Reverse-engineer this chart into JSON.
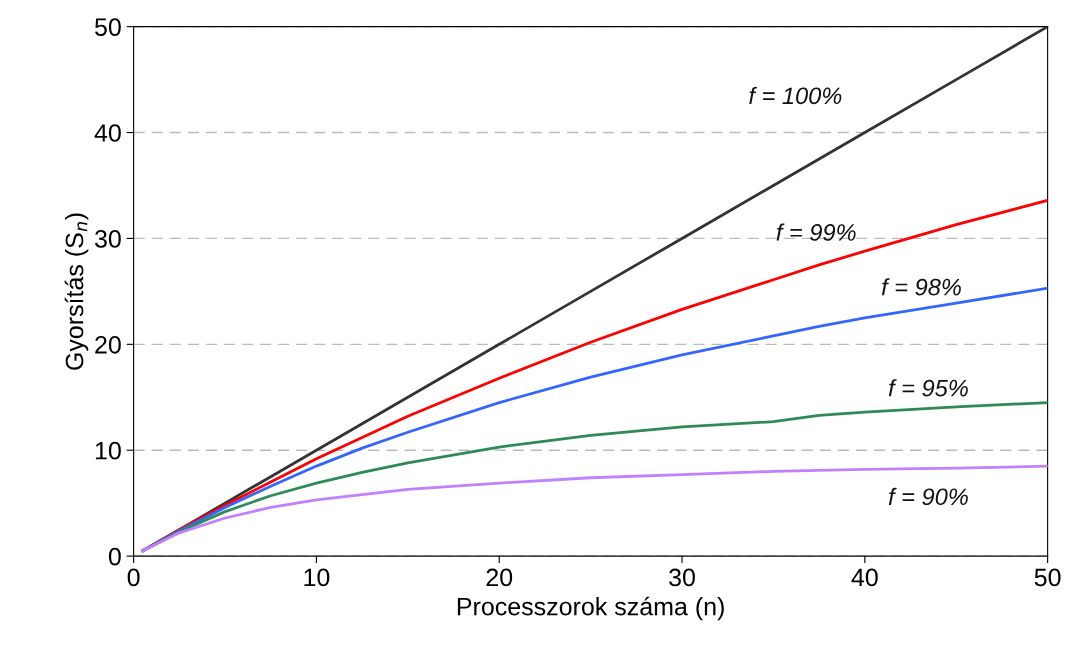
{
  "chart_data": {
    "type": "line",
    "xlabel": "Processzorok száma (n)",
    "ylabel": "Gyorsítás (S$_{n}$)",
    "x": [
      0.5,
      2.5,
      5,
      7.5,
      10,
      12.5,
      15,
      20,
      25,
      30,
      35,
      37.5,
      40,
      45,
      50
    ],
    "series": [
      {
        "name": "f = 100%",
        "color": "#333333",
        "values": [
          0.5,
          2.5,
          5,
          7.5,
          10,
          12.5,
          15,
          20,
          25,
          30,
          35,
          37.5,
          40,
          45,
          50
        ]
      },
      {
        "name": "f = 99%",
        "color": "#ff0000",
        "values": [
          0.5,
          2.5,
          4.8,
          7,
          9.2,
          11.2,
          13.2,
          16.8,
          20.2,
          23.3,
          26.1,
          27.5,
          28.8,
          31.3,
          33.6
        ]
      },
      {
        "name": "f = 98%",
        "color": "#3366ff",
        "values": [
          0.5,
          2.4,
          4.6,
          6.6,
          8.5,
          10.2,
          11.7,
          14.5,
          16.9,
          19,
          20.8,
          21.7,
          22.5,
          23.9,
          25.3
        ]
      },
      {
        "name": "f = 95%",
        "color": "#2e8b57",
        "values": [
          0.5,
          2.3,
          4.2,
          5.7,
          6.9,
          7.9,
          8.8,
          10.3,
          11.4,
          12.2,
          12.7,
          13.3,
          13.6,
          14.1,
          14.5
        ]
      },
      {
        "name": "f = 90%",
        "color": "#c080ff",
        "values": [
          0.5,
          2.2,
          3.6,
          4.6,
          5.3,
          5.8,
          6.3,
          6.9,
          7.4,
          7.7,
          8,
          8.1,
          8.2,
          8.3,
          8.5
        ]
      }
    ],
    "xlim": [
      0,
      50
    ],
    "ylim": [
      0,
      50
    ],
    "xticks": [
      0,
      10,
      20,
      30,
      40,
      50
    ],
    "yticks": [
      0,
      10,
      20,
      30,
      40,
      50
    ],
    "grid": "y",
    "legend": false,
    "marker": "none",
    "line_style": "solid"
  }
}
